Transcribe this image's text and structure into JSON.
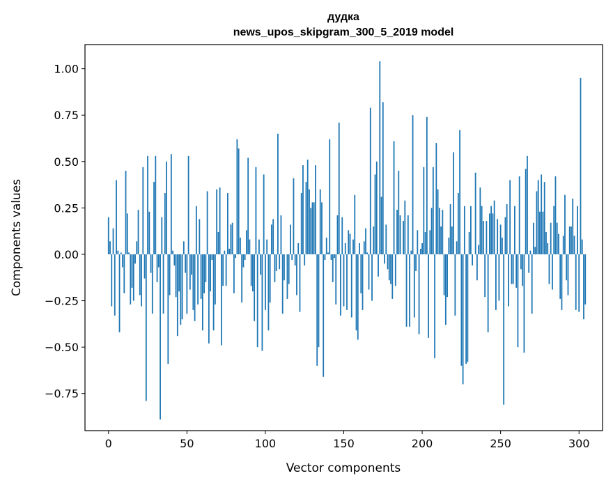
{
  "chart_data": {
    "type": "bar",
    "title": "дудка",
    "subtitle": "news_upos_skipgram_300_5_2019 model",
    "xlabel": "Vector components",
    "ylabel": "Components values",
    "xlim": [
      -15,
      315
    ],
    "ylim": [
      -0.95,
      1.13
    ],
    "xticks": [
      0,
      50,
      100,
      150,
      200,
      250,
      300
    ],
    "yticks": [
      -0.75,
      -0.5,
      -0.25,
      0.0,
      0.25,
      0.5,
      0.75,
      1.0
    ],
    "ytick_labels": [
      "−0.75",
      "−0.50",
      "−0.25",
      "0.00",
      "0.25",
      "0.50",
      "0.75",
      "1.00"
    ],
    "grid": false,
    "bar_color": "#1f77b4",
    "values": [
      0.2,
      0.07,
      -0.28,
      0.14,
      -0.33,
      0.4,
      0.02,
      -0.42,
      0.01,
      -0.07,
      -0.21,
      0.45,
      0.22,
      0.01,
      -0.27,
      -0.18,
      -0.25,
      -0.05,
      0.07,
      0.24,
      -0.22,
      -0.28,
      0.47,
      -0.13,
      -0.79,
      0.53,
      0.23,
      -0.1,
      -0.32,
      0.39,
      0.53,
      -0.15,
      -0.07,
      -0.89,
      0.2,
      -0.32,
      0.33,
      0.5,
      -0.59,
      -0.22,
      0.54,
      0.02,
      -0.06,
      -0.23,
      -0.44,
      -0.2,
      -0.38,
      -0.35,
      0.07,
      -0.1,
      -0.32,
      0.53,
      -0.19,
      -0.11,
      -0.3,
      -0.36,
      0.26,
      -0.27,
      0.19,
      -0.24,
      -0.41,
      -0.21,
      -0.15,
      0.34,
      -0.48,
      -0.2,
      -0.03,
      -0.41,
      -0.27,
      0.35,
      0.12,
      0.36,
      -0.49,
      -0.17,
      0.02,
      -0.17,
      0.33,
      0.03,
      0.16,
      0.17,
      -0.21,
      -0.02,
      0.62,
      0.57,
      0.09,
      -0.26,
      -0.07,
      -0.03,
      0.13,
      0.52,
      0.08,
      -0.17,
      -0.2,
      -0.36,
      0.47,
      -0.5,
      0.08,
      -0.11,
      -0.52,
      0.43,
      -0.3,
      0.08,
      -0.41,
      -0.26,
      0.16,
      0.19,
      -0.15,
      -0.09,
      0.65,
      -0.08,
      0.21,
      -0.32,
      -0.14,
      0.0,
      -0.24,
      -0.16,
      0.16,
      -0.03,
      0.41,
      -0.06,
      -0.22,
      0.06,
      -0.31,
      0.33,
      0.48,
      -0.06,
      0.39,
      0.51,
      0.35,
      0.25,
      0.28,
      0.28,
      0.48,
      -0.6,
      -0.5,
      0.35,
      0.28,
      -0.66,
      -0.03,
      0.09,
      0.01,
      0.62,
      -0.03,
      -0.15,
      -0.02,
      -0.27,
      0.21,
      0.71,
      -0.33,
      0.2,
      -0.28,
      0.06,
      -0.3,
      0.13,
      0.11,
      -0.34,
      0.08,
      0.32,
      -0.41,
      -0.46,
      0.06,
      -0.21,
      -0.3,
      0.07,
      0.14,
      0.01,
      -0.19,
      0.79,
      -0.25,
      0.15,
      0.43,
      0.5,
      -0.12,
      1.04,
      0.31,
      0.82,
      -0.05,
      0.16,
      -0.08,
      -0.14,
      -0.16,
      -0.24,
      0.61,
      -0.17,
      0.24,
      0.45,
      0.21,
      0.0,
      0.18,
      0.29,
      -0.39,
      0.21,
      -0.39,
      0.02,
      0.75,
      -0.34,
      -0.09,
      0.13,
      -0.43,
      0.03,
      0.06,
      0.47,
      0.12,
      0.74,
      -0.45,
      0.13,
      0.25,
      0.47,
      -0.56,
      0.6,
      0.35,
      0.25,
      0.15,
      0.24,
      -0.22,
      -0.38,
      -0.23,
      0.09,
      0.27,
      0.15,
      0.55,
      -0.33,
      0.07,
      0.33,
      0.67,
      -0.6,
      -0.7,
      0.26,
      -0.59,
      -0.58,
      0.12,
      0.26,
      -0.06,
      0.0,
      0.44,
      -0.14,
      0.05,
      0.36,
      0.26,
      0.18,
      -0.23,
      0.18,
      -0.42,
      0.22,
      0.26,
      0.22,
      0.29,
      -0.3,
      0.19,
      -0.25,
      0.16,
      0.09,
      -0.81,
      0.2,
      0.27,
      -0.28,
      0.4,
      -0.16,
      -0.16,
      0.26,
      -0.18,
      -0.5,
      0.42,
      -0.08,
      -0.17,
      -0.53,
      0.46,
      0.53,
      -0.1,
      0.02,
      -0.32,
      0.17,
      0.04,
      0.34,
      0.4,
      0.23,
      0.43,
      0.23,
      0.39,
      0.12,
      0.06,
      -0.16,
      0.17,
      -0.19,
      0.26,
      0.42,
      0.17,
      0.11,
      -0.24,
      -0.3,
      0.1,
      0.32,
      -0.14,
      -0.22,
      0.15,
      0.15,
      0.3,
      0.1,
      -0.3,
      0.26,
      -0.31,
      0.95,
      0.08,
      -0.35,
      -0.27
    ]
  }
}
